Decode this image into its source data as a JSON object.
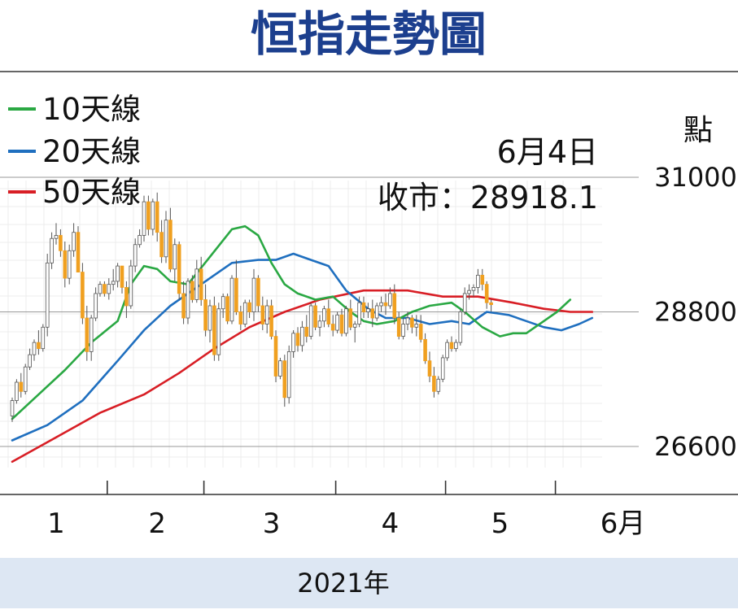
{
  "chart_data": {
    "type": "candlestick-line",
    "title": "恒指走勢圖",
    "unit_label": "點",
    "annotation": {
      "date": "6月4日",
      "close_text": "收市：28918.1",
      "close": 28918.1
    },
    "y_ticks": [
      31000,
      28800,
      26600
    ],
    "y_tick_labels": [
      "31000",
      "28800",
      "26600"
    ],
    "ylim": [
      25900,
      31300
    ],
    "x_month_labels": [
      "1",
      "2",
      "3",
      "4",
      "5",
      "6月"
    ],
    "xlabel": "2021年",
    "colors": {
      "up": "#ffffff",
      "down": "#f0a020",
      "wick": "#555555",
      "ma10": "#2aa843",
      "ma20": "#1f6fbf",
      "ma50": "#d81e25",
      "title": "#1c3f8e",
      "footer": "#dde7f3"
    },
    "legend": [
      {
        "name": "10天線",
        "color": "#2aa843"
      },
      {
        "name": "20天線",
        "color": "#1f6fbf"
      },
      {
        "name": "50天線",
        "color": "#d81e25"
      }
    ],
    "candles": [
      [
        27100,
        27400,
        27000,
        27350
      ],
      [
        27350,
        27700,
        27300,
        27650
      ],
      [
        27650,
        27800,
        27400,
        27500
      ],
      [
        27500,
        27950,
        27450,
        27900
      ],
      [
        27900,
        28200,
        27850,
        28100
      ],
      [
        28100,
        28350,
        28000,
        28300
      ],
      [
        28300,
        28500,
        28100,
        28200
      ],
      [
        28200,
        28600,
        28150,
        28550
      ],
      [
        28550,
        29750,
        28400,
        29600
      ],
      [
        29600,
        30100,
        29500,
        30000
      ],
      [
        30000,
        30250,
        29900,
        30050
      ],
      [
        30050,
        30150,
        29700,
        29800
      ],
      [
        29800,
        29950,
        29200,
        29350
      ],
      [
        29350,
        29900,
        29250,
        29800
      ],
      [
        29800,
        30250,
        29700,
        30100
      ],
      [
        30100,
        30200,
        29500,
        29450
      ],
      [
        29450,
        29600,
        28600,
        28700
      ],
      [
        28700,
        28900,
        28000,
        28150
      ],
      [
        28150,
        28750,
        28000,
        28700
      ],
      [
        28700,
        29200,
        28650,
        29100
      ],
      [
        29100,
        29300,
        29050,
        29250
      ],
      [
        29250,
        29300,
        29050,
        29100
      ],
      [
        29100,
        29350,
        29000,
        29250
      ],
      [
        29250,
        29500,
        29150,
        29300
      ],
      [
        29300,
        29600,
        29200,
        29550
      ],
      [
        29550,
        29500,
        29100,
        29200
      ],
      [
        29200,
        29300,
        28700,
        28900
      ],
      [
        28900,
        29650,
        28850,
        29550
      ],
      [
        29550,
        30000,
        29450,
        29900
      ],
      [
        29900,
        30150,
        29850,
        30050
      ],
      [
        30050,
        30700,
        29950,
        30600
      ],
      [
        30600,
        30700,
        30050,
        30150
      ],
      [
        30150,
        30650,
        30050,
        30600
      ],
      [
        30600,
        30750,
        29950,
        30100
      ],
      [
        30100,
        30300,
        29600,
        29700
      ],
      [
        29700,
        30450,
        29600,
        30300
      ],
      [
        30300,
        30500,
        29450,
        29500
      ],
      [
        29500,
        30000,
        29300,
        29900
      ],
      [
        29900,
        29950,
        29000,
        29100
      ],
      [
        29100,
        29300,
        28600,
        28700
      ],
      [
        28700,
        29350,
        28600,
        29300
      ],
      [
        29300,
        29400,
        28950,
        29000
      ],
      [
        29000,
        29650,
        28950,
        29500
      ],
      [
        29500,
        29700,
        28900,
        29000
      ],
      [
        29000,
        29250,
        28400,
        28500
      ],
      [
        28500,
        29000,
        28300,
        28900
      ],
      [
        28900,
        29050,
        28000,
        28100
      ],
      [
        28100,
        28950,
        28000,
        28850
      ],
      [
        28850,
        29100,
        28700,
        29050
      ],
      [
        29050,
        29100,
        28600,
        28650
      ],
      [
        28650,
        29400,
        28600,
        29350
      ],
      [
        29350,
        29650,
        28750,
        28800
      ],
      [
        28800,
        28900,
        28500,
        28600
      ],
      [
        28600,
        29000,
        28550,
        28950
      ],
      [
        28950,
        29000,
        28700,
        28800
      ],
      [
        28800,
        29500,
        28650,
        29350
      ],
      [
        29350,
        29400,
        28800,
        28900
      ],
      [
        28900,
        29050,
        28500,
        28600
      ],
      [
        28600,
        29000,
        28450,
        28900
      ],
      [
        28900,
        29000,
        28350,
        28400
      ],
      [
        28400,
        28500,
        27650,
        27750
      ],
      [
        27750,
        28050,
        27700,
        28000
      ],
      [
        28000,
        28100,
        27250,
        27400
      ],
      [
        27400,
        28250,
        27300,
        28150
      ],
      [
        28150,
        28500,
        28050,
        28450
      ],
      [
        28450,
        28550,
        28150,
        28250
      ],
      [
        28250,
        28650,
        28150,
        28550
      ],
      [
        28550,
        28750,
        28300,
        28400
      ],
      [
        28400,
        28950,
        28350,
        28900
      ],
      [
        28900,
        28950,
        28500,
        28550
      ],
      [
        28550,
        28750,
        28400,
        28650
      ],
      [
        28650,
        28900,
        28550,
        28850
      ],
      [
        28850,
        29000,
        28550,
        28600
      ],
      [
        28600,
        28750,
        28400,
        28500
      ],
      [
        28500,
        28800,
        28450,
        28750
      ],
      [
        28750,
        28850,
        28400,
        28450
      ],
      [
        28450,
        28900,
        28400,
        28850
      ],
      [
        28850,
        29000,
        28500,
        28550
      ],
      [
        28550,
        28650,
        28300,
        28600
      ],
      [
        28600,
        29050,
        28550,
        28950
      ],
      [
        28950,
        29050,
        28700,
        28800
      ],
      [
        28800,
        28950,
        28700,
        28850
      ],
      [
        28850,
        29000,
        28550,
        28700
      ],
      [
        28700,
        28950,
        28650,
        28900
      ],
      [
        28900,
        29050,
        28800,
        28950
      ],
      [
        28950,
        29100,
        28750,
        28900
      ],
      [
        28900,
        29200,
        28850,
        29100
      ],
      [
        29100,
        29250,
        28600,
        28700
      ],
      [
        28700,
        28800,
        28350,
        28400
      ],
      [
        28400,
        28700,
        28350,
        28600
      ],
      [
        28600,
        28800,
        28500,
        28700
      ],
      [
        28700,
        28750,
        28450,
        28550
      ],
      [
        28550,
        28750,
        28400,
        28600
      ],
      [
        28600,
        28750,
        28300,
        28350
      ],
      [
        28350,
        28450,
        27950,
        28000
      ],
      [
        28000,
        28150,
        27650,
        27750
      ],
      [
        27750,
        27900,
        27400,
        27500
      ],
      [
        27500,
        27750,
        27450,
        27700
      ],
      [
        27700,
        28100,
        27650,
        28050
      ],
      [
        28050,
        28350,
        28000,
        28300
      ],
      [
        28300,
        28400,
        28150,
        28200
      ],
      [
        28200,
        28350,
        28150,
        28300
      ],
      [
        28300,
        28850,
        28250,
        28800
      ],
      [
        28800,
        29200,
        28750,
        29100
      ],
      [
        29100,
        29250,
        29000,
        29150
      ],
      [
        29150,
        29250,
        29050,
        29200
      ],
      [
        29200,
        29500,
        29100,
        29400
      ],
      [
        29400,
        29500,
        29150,
        29250
      ],
      [
        29250,
        29300,
        28850,
        28950
      ],
      [
        28950,
        29000,
        28800,
        28918.1
      ]
    ],
    "ma10": [
      [
        0,
        27050
      ],
      [
        6,
        27450
      ],
      [
        12,
        27850
      ],
      [
        18,
        28300
      ],
      [
        24,
        28650
      ],
      [
        27,
        29250
      ],
      [
        30,
        29550
      ],
      [
        33,
        29500
      ],
      [
        36,
        29300
      ],
      [
        40,
        29250
      ],
      [
        45,
        29700
      ],
      [
        50,
        30150
      ],
      [
        53,
        30200
      ],
      [
        56,
        30050
      ],
      [
        59,
        29600
      ],
      [
        62,
        29250
      ],
      [
        65,
        29100
      ],
      [
        69,
        29000
      ],
      [
        73,
        29050
      ],
      [
        77,
        28800
      ],
      [
        80,
        28650
      ],
      [
        83,
        28600
      ],
      [
        87,
        28650
      ],
      [
        91,
        28800
      ],
      [
        95,
        28900
      ],
      [
        100,
        28950
      ],
      [
        103,
        28800
      ],
      [
        107,
        28550
      ],
      [
        111,
        28400
      ],
      [
        114,
        28450
      ],
      [
        117,
        28450
      ],
      [
        121,
        28650
      ],
      [
        124,
        28800
      ],
      [
        127,
        29000
      ]
    ],
    "ma20": [
      [
        0,
        26700
      ],
      [
        8,
        26950
      ],
      [
        16,
        27350
      ],
      [
        24,
        28000
      ],
      [
        30,
        28500
      ],
      [
        36,
        28900
      ],
      [
        40,
        29100
      ],
      [
        45,
        29350
      ],
      [
        50,
        29600
      ],
      [
        56,
        29650
      ],
      [
        60,
        29650
      ],
      [
        64,
        29750
      ],
      [
        68,
        29650
      ],
      [
        72,
        29550
      ],
      [
        76,
        29150
      ],
      [
        81,
        28850
      ],
      [
        85,
        28700
      ],
      [
        90,
        28700
      ],
      [
        95,
        28600
      ],
      [
        100,
        28650
      ],
      [
        104,
        28600
      ],
      [
        108,
        28800
      ],
      [
        113,
        28750
      ],
      [
        117,
        28650
      ],
      [
        121,
        28550
      ],
      [
        125,
        28500
      ],
      [
        129,
        28600
      ],
      [
        132,
        28700
      ]
    ],
    "ma50": [
      [
        0,
        26350
      ],
      [
        10,
        26750
      ],
      [
        20,
        27150
      ],
      [
        30,
        27450
      ],
      [
        38,
        27800
      ],
      [
        46,
        28200
      ],
      [
        54,
        28550
      ],
      [
        62,
        28800
      ],
      [
        70,
        29000
      ],
      [
        80,
        29150
      ],
      [
        90,
        29150
      ],
      [
        98,
        29050
      ],
      [
        106,
        29050
      ],
      [
        114,
        28950
      ],
      [
        121,
        28850
      ],
      [
        127,
        28800
      ],
      [
        132,
        28800
      ]
    ]
  }
}
